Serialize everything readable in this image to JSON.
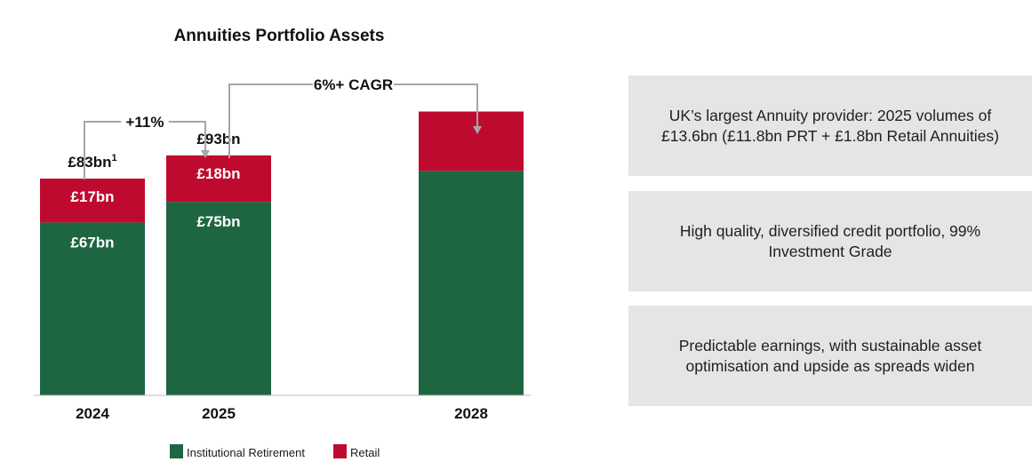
{
  "chart_data": {
    "type": "bar",
    "stacked": true,
    "title": "Annuities Portfolio Assets",
    "categories": [
      "2024",
      "2025",
      "2028"
    ],
    "series": [
      {
        "name": "Institutional Retirement",
        "color": "#1e6641",
        "values": [
          67,
          75,
          87
        ],
        "labels": [
          "£67bn",
          "£75bn",
          ""
        ]
      },
      {
        "name": "Retail",
        "color": "#bf0a2f",
        "values": [
          17,
          18,
          23
        ],
        "labels": [
          "£17bn",
          "£18bn",
          ""
        ]
      }
    ],
    "totals": [
      {
        "label": "£83bn",
        "superscript": "1"
      },
      {
        "label": "£93bn",
        "superscript": ""
      },
      {
        "label": "",
        "superscript": ""
      }
    ],
    "ylim": [
      0,
      115
    ],
    "grid": false,
    "legend": "bottom",
    "annotations": [
      {
        "text": "+11%",
        "from": "2024",
        "to": "2025"
      },
      {
        "text": "6%+ CAGR",
        "from": "2025",
        "to": "2028"
      }
    ]
  },
  "panels": [
    {
      "text": "UK’s largest Annuity provider: 2025 volumes of £13.6bn (£11.8bn PRT + £1.8bn Retail Annuities)"
    },
    {
      "text": "High quality, diversified credit portfolio, 99% Investment Grade"
    },
    {
      "text": "Predictable earnings, with sustainable asset optimisation and upside as spreads widen"
    }
  ]
}
